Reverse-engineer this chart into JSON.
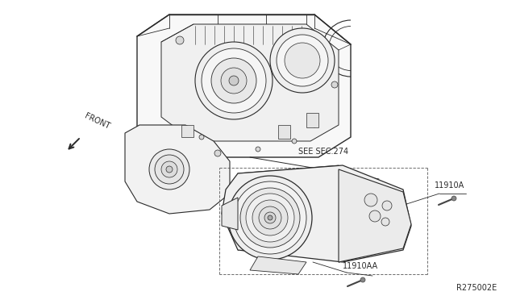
{
  "bg_color": "#ffffff",
  "line_color": "#2a2a2a",
  "ref_code": "R275002E",
  "label_front": "FRONT",
  "label_see": "SEE SEC.274",
  "label_11910A": "11910A",
  "label_11910AA": "11910AA",
  "font_size_labels": 7,
  "font_size_ref": 7,
  "fig_width": 6.4,
  "fig_height": 3.72,
  "dpi": 100
}
